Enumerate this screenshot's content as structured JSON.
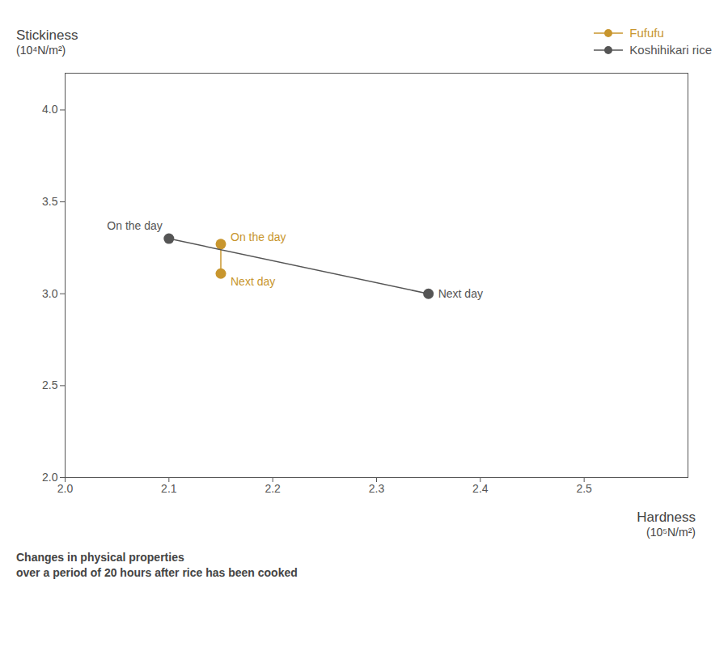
{
  "chart_data": {
    "type": "line",
    "series": [
      {
        "name": "Fufufu",
        "color": "#C8962E",
        "x": [
          2.15,
          2.15
        ],
        "values": [
          3.27,
          3.11
        ],
        "marker": "o",
        "point_labels": [
          "On the day",
          "Next day"
        ]
      },
      {
        "name": "Koshihikari rice",
        "color": "#555555",
        "x": [
          2.1,
          2.35
        ],
        "values": [
          3.3,
          3.0
        ],
        "marker": "o",
        "point_labels": [
          "On the day",
          "Next day"
        ]
      }
    ],
    "xlabel": "Hardness",
    "xlabel_unit": "(10⁵N/m²)",
    "ylabel": "Stickiness",
    "ylabel_unit": "(10⁴N/m²)",
    "xlim": [
      2.0,
      2.6
    ],
    "xticks": [
      {
        "value": 2.0,
        "label": "2.0"
      },
      2.1,
      2.2,
      2.3,
      2.4,
      2.5
    ],
    "ylim": [
      2.0,
      4.2
    ],
    "yticks": [
      {
        "value": 2.0,
        "label": "2.0"
      },
      2.5,
      {
        "value": 3.0,
        "label": "3.0"
      },
      3.5,
      {
        "value": 4.0,
        "label": "4.0"
      }
    ],
    "grid": false,
    "legend": "upper right",
    "caption": [
      "Changes in physical properties",
      "over a period of 20 hours after rice has been cooked"
    ]
  }
}
